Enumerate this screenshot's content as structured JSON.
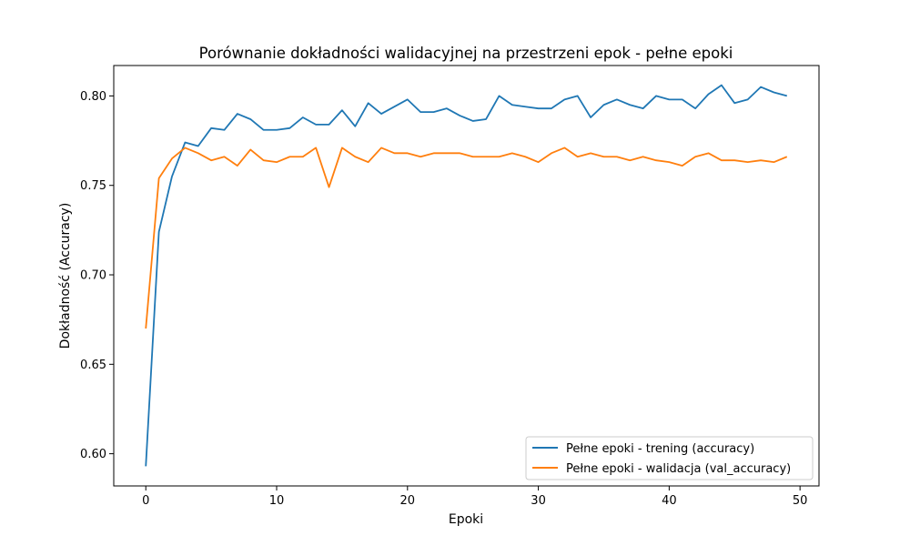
{
  "chart_data": {
    "type": "line",
    "title": "Porównanie dokładności walidacyjnej na przestrzeni epok - pełne epoki",
    "xlabel": "Epoki",
    "ylabel": "Dokładność (Accuracy)",
    "xlim": [
      -2.45,
      51.45
    ],
    "ylim": [
      0.582,
      0.817
    ],
    "xticks": [
      0,
      10,
      20,
      30,
      40,
      50
    ],
    "yticks": [
      0.6,
      0.65,
      0.7,
      0.75,
      0.8
    ],
    "ytick_labels": [
      "0.60",
      "0.65",
      "0.70",
      "0.75",
      "0.80"
    ],
    "grid": false,
    "legend_position": "lower-right",
    "x": [
      0,
      1,
      2,
      3,
      4,
      5,
      6,
      7,
      8,
      9,
      10,
      11,
      12,
      13,
      14,
      15,
      16,
      17,
      18,
      19,
      20,
      21,
      22,
      23,
      24,
      25,
      26,
      27,
      28,
      29,
      30,
      31,
      32,
      33,
      34,
      35,
      36,
      37,
      38,
      39,
      40,
      41,
      42,
      43,
      44,
      45,
      46,
      47,
      48,
      49
    ],
    "series": [
      {
        "name": "Pełne epoki - trening (accuracy)",
        "color": "#1f77b4",
        "values": [
          0.593,
          0.724,
          0.755,
          0.774,
          0.772,
          0.782,
          0.781,
          0.79,
          0.787,
          0.781,
          0.781,
          0.782,
          0.788,
          0.784,
          0.784,
          0.792,
          0.783,
          0.796,
          0.79,
          0.794,
          0.798,
          0.791,
          0.791,
          0.793,
          0.789,
          0.786,
          0.787,
          0.8,
          0.795,
          0.794,
          0.793,
          0.793,
          0.798,
          0.8,
          0.788,
          0.795,
          0.798,
          0.795,
          0.793,
          0.8,
          0.798,
          0.798,
          0.793,
          0.801,
          0.806,
          0.796,
          0.798,
          0.805,
          0.802,
          0.8
        ]
      },
      {
        "name": "Pełne epoki - walidacja (val_accuracy)",
        "color": "#ff7f0e",
        "values": [
          0.67,
          0.754,
          0.765,
          0.771,
          0.768,
          0.764,
          0.766,
          0.761,
          0.77,
          0.764,
          0.763,
          0.766,
          0.766,
          0.771,
          0.749,
          0.771,
          0.766,
          0.763,
          0.771,
          0.768,
          0.768,
          0.766,
          0.768,
          0.768,
          0.768,
          0.766,
          0.766,
          0.766,
          0.768,
          0.766,
          0.763,
          0.768,
          0.771,
          0.766,
          0.768,
          0.766,
          0.766,
          0.764,
          0.766,
          0.764,
          0.763,
          0.761,
          0.766,
          0.768,
          0.764,
          0.764,
          0.763,
          0.764,
          0.763,
          0.766
        ]
      }
    ]
  }
}
